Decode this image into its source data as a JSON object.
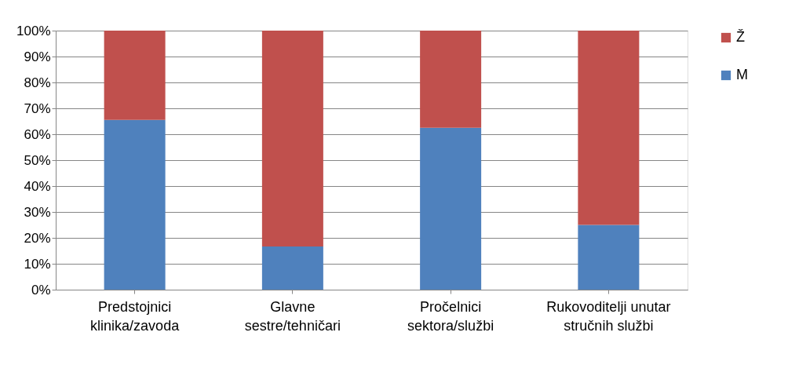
{
  "chart_data": {
    "type": "bar",
    "stacked": true,
    "categories": [
      "Predstojnici klinika/zavoda",
      "Glavne sestre/tehničari",
      "Pročelnici sektora/službi",
      "Rukovoditelji unutar stručnih službi"
    ],
    "series": [
      {
        "name": "M",
        "color": "#4f81bd",
        "values": [
          65.5,
          16.7,
          62.5,
          25
        ]
      },
      {
        "name": "Ž",
        "color": "#c0504d",
        "values": [
          34.5,
          83.3,
          37.5,
          75
        ]
      }
    ],
    "ylim": [
      0,
      100
    ],
    "yticks": [
      {
        "value": 0,
        "label": "0%"
      },
      {
        "value": 10,
        "label": "10%"
      },
      {
        "value": 20,
        "label": "20%"
      },
      {
        "value": 30,
        "label": "30%"
      },
      {
        "value": 40,
        "label": "40%"
      },
      {
        "value": 50,
        "label": "50%"
      },
      {
        "value": 60,
        "label": "60%"
      },
      {
        "value": 70,
        "label": "70%"
      },
      {
        "value": 80,
        "label": "80%"
      },
      {
        "value": 90,
        "label": "90%"
      },
      {
        "value": 100,
        "label": "100%"
      }
    ],
    "grid": "y",
    "legend": "right"
  }
}
